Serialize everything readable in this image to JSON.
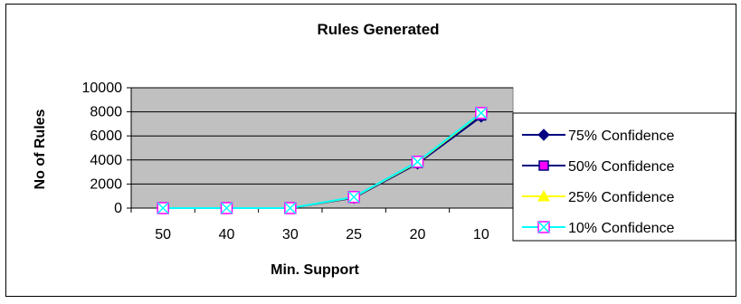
{
  "chart_data": {
    "type": "line",
    "title": "Rules Generated",
    "xlabel": "Min. Support",
    "ylabel": "No of Rules",
    "categories": [
      "50",
      "40",
      "30",
      "25",
      "20",
      "10"
    ],
    "ylim": [
      0,
      10000
    ],
    "yticks": [
      0,
      2000,
      4000,
      6000,
      8000,
      10000
    ],
    "grid": true,
    "legend_position": "right",
    "plot_background": "#c0c0c0",
    "series": [
      {
        "name": "75% Confidence",
        "values": [
          0,
          0,
          0,
          850,
          3700,
          7600
        ],
        "color": "#000080",
        "marker": "diamond",
        "marker_fill": "#000080"
      },
      {
        "name": "50% Confidence",
        "values": [
          0,
          0,
          0,
          870,
          3750,
          7700
        ],
        "color": "#000080",
        "marker": "square",
        "marker_fill": "#ff00ff"
      },
      {
        "name": "25% Confidence",
        "values": [
          0,
          0,
          0,
          900,
          3800,
          7850
        ],
        "color": "#ffff00",
        "marker": "triangle",
        "marker_fill": "#ffff00"
      },
      {
        "name": "10% Confidence",
        "values": [
          0,
          0,
          0,
          920,
          3850,
          7900
        ],
        "color": "#00ffff",
        "marker": "xsquare",
        "marker_fill": "#ff00ff"
      }
    ]
  }
}
